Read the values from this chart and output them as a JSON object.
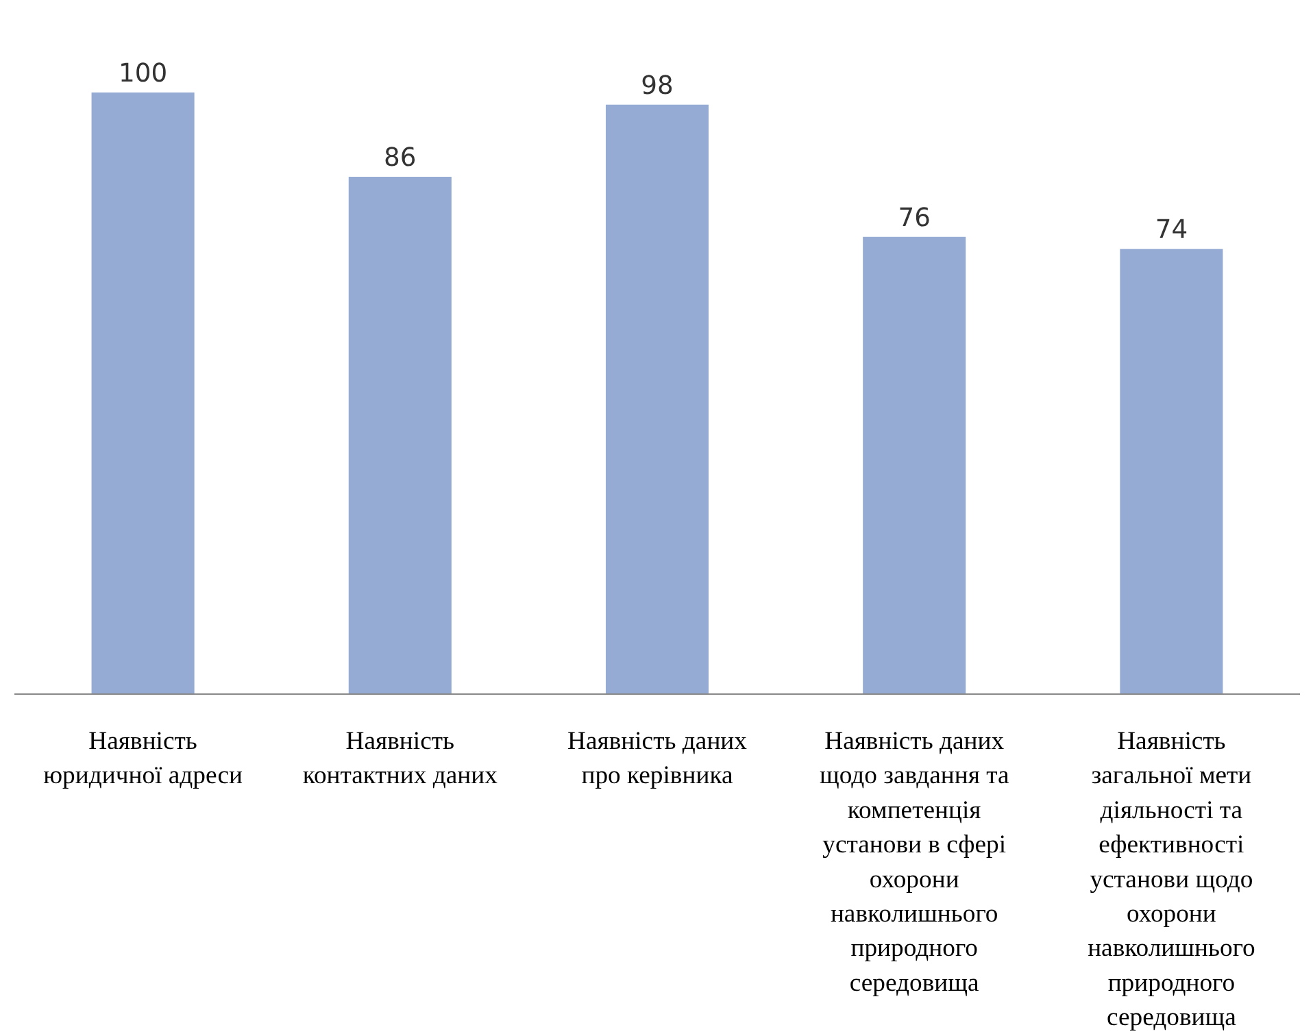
{
  "chart_data": {
    "type": "bar",
    "categories": [
      "Наявність юридичної адреси",
      "Наявність контактних даних",
      "Наявність даних про керівника",
      "Наявність даних щодо завдання та компетенція установи в сфері охорони навколишнього природного середовища",
      "Наявність загальної мети діяльності та ефективності установи щодо охорони навколишнього природного середовища"
    ],
    "values": [
      100,
      86,
      98,
      76,
      74
    ],
    "color": "#95abd3",
    "data_labels": true,
    "grid": false
  }
}
